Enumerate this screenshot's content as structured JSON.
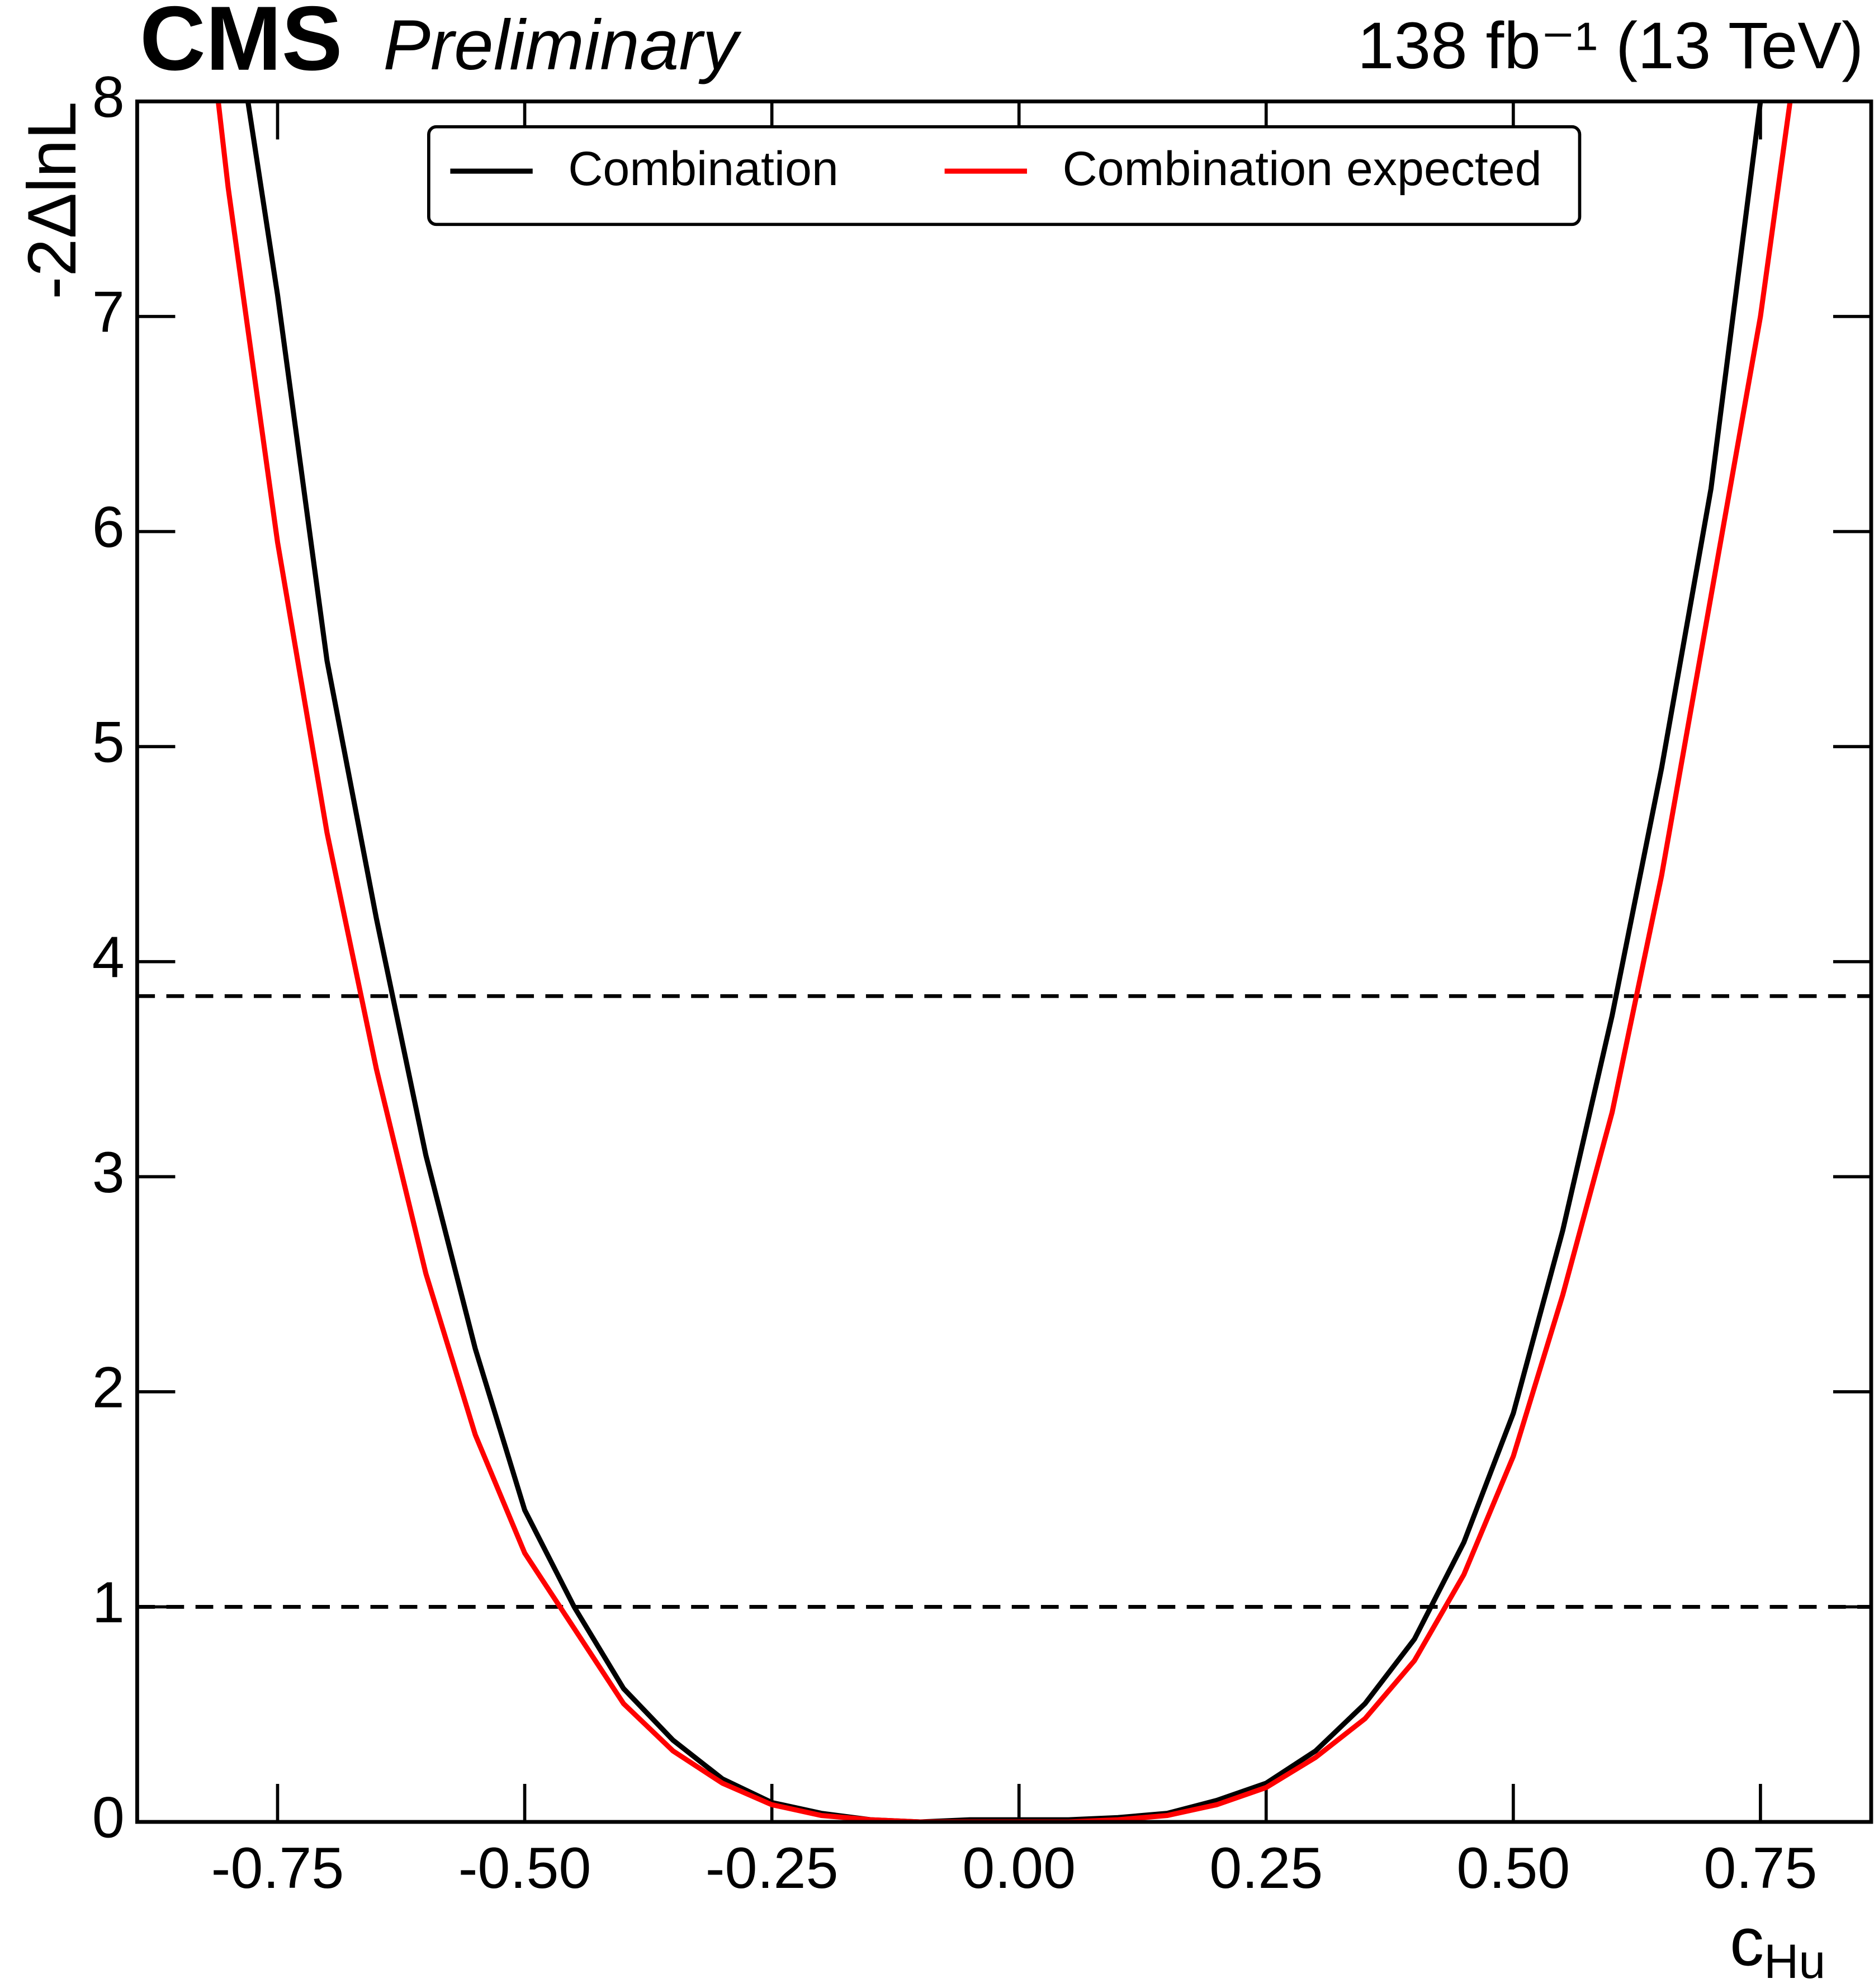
{
  "chart_data": {
    "type": "line",
    "experiment": "CMS",
    "status": "Preliminary",
    "lumi": "138 fb⁻¹ (13 TeV)",
    "y_label": "-2ΔlnL",
    "x_label": "c",
    "x_label_sub": "Hu",
    "xlim": [
      -0.892,
      0.862
    ],
    "ylim": [
      0,
      8
    ],
    "xticks": [
      {
        "value": -0.75,
        "label": "-0.75"
      },
      {
        "value": -0.5,
        "label": "-0.50"
      },
      {
        "value": -0.25,
        "label": "-0.25"
      },
      {
        "value": 0,
        "label": "0.00"
      },
      {
        "value": 0.25,
        "label": "0.25"
      },
      {
        "value": 0.5,
        "label": "0.50"
      },
      {
        "value": 0.75,
        "label": "0.75"
      }
    ],
    "yticks": [
      0,
      1,
      2,
      3,
      4,
      5,
      6,
      7,
      8
    ],
    "hlines": [
      1,
      3.84
    ],
    "series": [
      {
        "name": "Combination",
        "color": "#000000",
        "x": [
          -0.78,
          -0.75,
          -0.7,
          -0.65,
          -0.6,
          -0.55,
          -0.5,
          -0.45,
          -0.4,
          -0.35,
          -0.3,
          -0.25,
          -0.2,
          -0.15,
          -0.1,
          -0.05,
          0,
          0.05,
          0.1,
          0.15,
          0.2,
          0.25,
          0.3,
          0.35,
          0.4,
          0.45,
          0.5,
          0.55,
          0.6,
          0.65,
          0.7,
          0.75
        ],
        "values": [
          8.0,
          7.1,
          5.4,
          4.2,
          3.1,
          2.2,
          1.45,
          1.0,
          0.62,
          0.38,
          0.2,
          0.09,
          0.04,
          0.01,
          0,
          0.01,
          0.01,
          0.01,
          0.02,
          0.04,
          0.1,
          0.18,
          0.33,
          0.55,
          0.85,
          1.3,
          1.9,
          2.75,
          3.75,
          4.9,
          6.2,
          8.0
        ]
      },
      {
        "name": "Combination expected",
        "color": "#ff0000",
        "x": [
          -0.81,
          -0.8,
          -0.75,
          -0.7,
          -0.65,
          -0.6,
          -0.55,
          -0.5,
          -0.45,
          -0.4,
          -0.35,
          -0.3,
          -0.25,
          -0.2,
          -0.15,
          -0.1,
          -0.05,
          0,
          0.05,
          0.1,
          0.15,
          0.2,
          0.25,
          0.3,
          0.35,
          0.4,
          0.45,
          0.5,
          0.55,
          0.6,
          0.65,
          0.7,
          0.75,
          0.78
        ],
        "values": [
          8.0,
          7.6,
          5.95,
          4.6,
          3.5,
          2.55,
          1.8,
          1.25,
          0.9,
          0.55,
          0.33,
          0.18,
          0.08,
          0.03,
          0.01,
          0,
          0,
          0,
          0,
          0.01,
          0.03,
          0.08,
          0.16,
          0.3,
          0.48,
          0.75,
          1.15,
          1.7,
          2.45,
          3.3,
          4.4,
          5.7,
          7.0,
          8.0
        ]
      }
    ]
  }
}
